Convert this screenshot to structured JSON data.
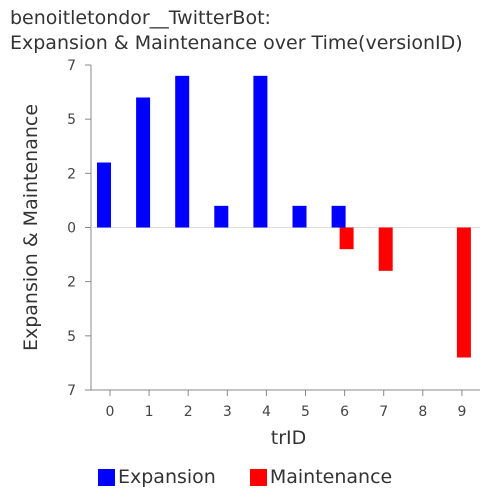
{
  "chart_data": {
    "type": "bar",
    "title": [
      "benoitletondor__TwitterBot:",
      "Expansion & Maintenance over Time(versionID)"
    ],
    "xlabel": "trID",
    "ylabel": "Expansion & Maintenance",
    "categories": [
      "0",
      "1",
      "2",
      "3",
      "4",
      "5",
      "6",
      "7",
      "8",
      "9"
    ],
    "y_tick_labels": [
      "7",
      "5",
      "2",
      "0",
      "2",
      "5",
      "7"
    ],
    "ylim": [
      -7.5,
      7.5
    ],
    "series": [
      {
        "name": "Expansion",
        "color": "#0000ff",
        "values": [
          3,
          6,
          7,
          1,
          7,
          1,
          1,
          0,
          0,
          0
        ]
      },
      {
        "name": "Maintenance",
        "color": "#ff0000",
        "values": [
          0,
          0,
          0,
          0,
          0,
          0,
          -1,
          -2,
          0,
          -6
        ]
      }
    ],
    "legend_position": "bottom",
    "grid": false
  }
}
